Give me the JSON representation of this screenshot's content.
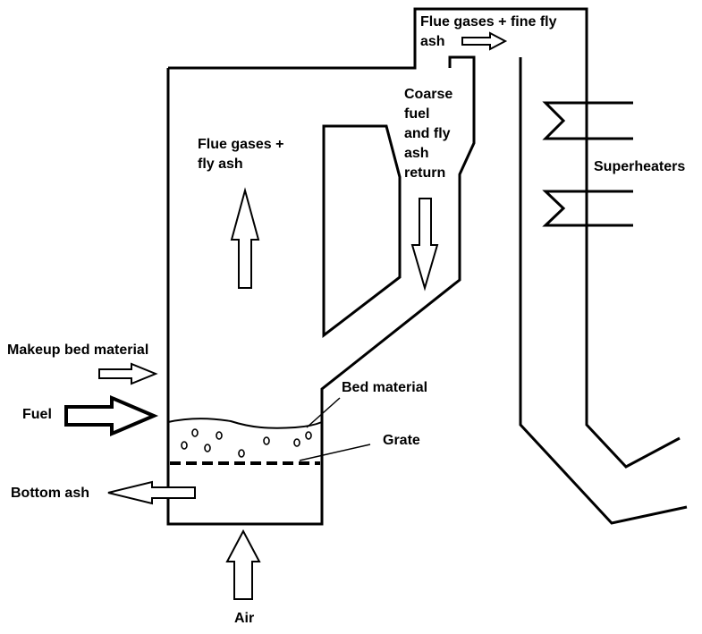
{
  "labels": {
    "flue_gases_fine_fly_ash_1": "Flue gases + fine fly",
    "flue_gases_fine_fly_ash_2": "ash",
    "coarse_return_1": "Coarse",
    "coarse_return_2": "fuel",
    "coarse_return_3": "and fly",
    "coarse_return_4": "ash",
    "coarse_return_5": "return",
    "flue_gases_fly_ash_1": "Flue gases +",
    "flue_gases_fly_ash_2": "fly ash",
    "superheaters": "Superheaters",
    "makeup_bed_material": "Makeup bed material",
    "fuel": "Fuel",
    "bed_material": "Bed material",
    "grate": "Grate",
    "bottom_ash": "Bottom ash",
    "air": "Air"
  },
  "colors": {
    "stroke": "#000000",
    "background": "#ffffff"
  }
}
